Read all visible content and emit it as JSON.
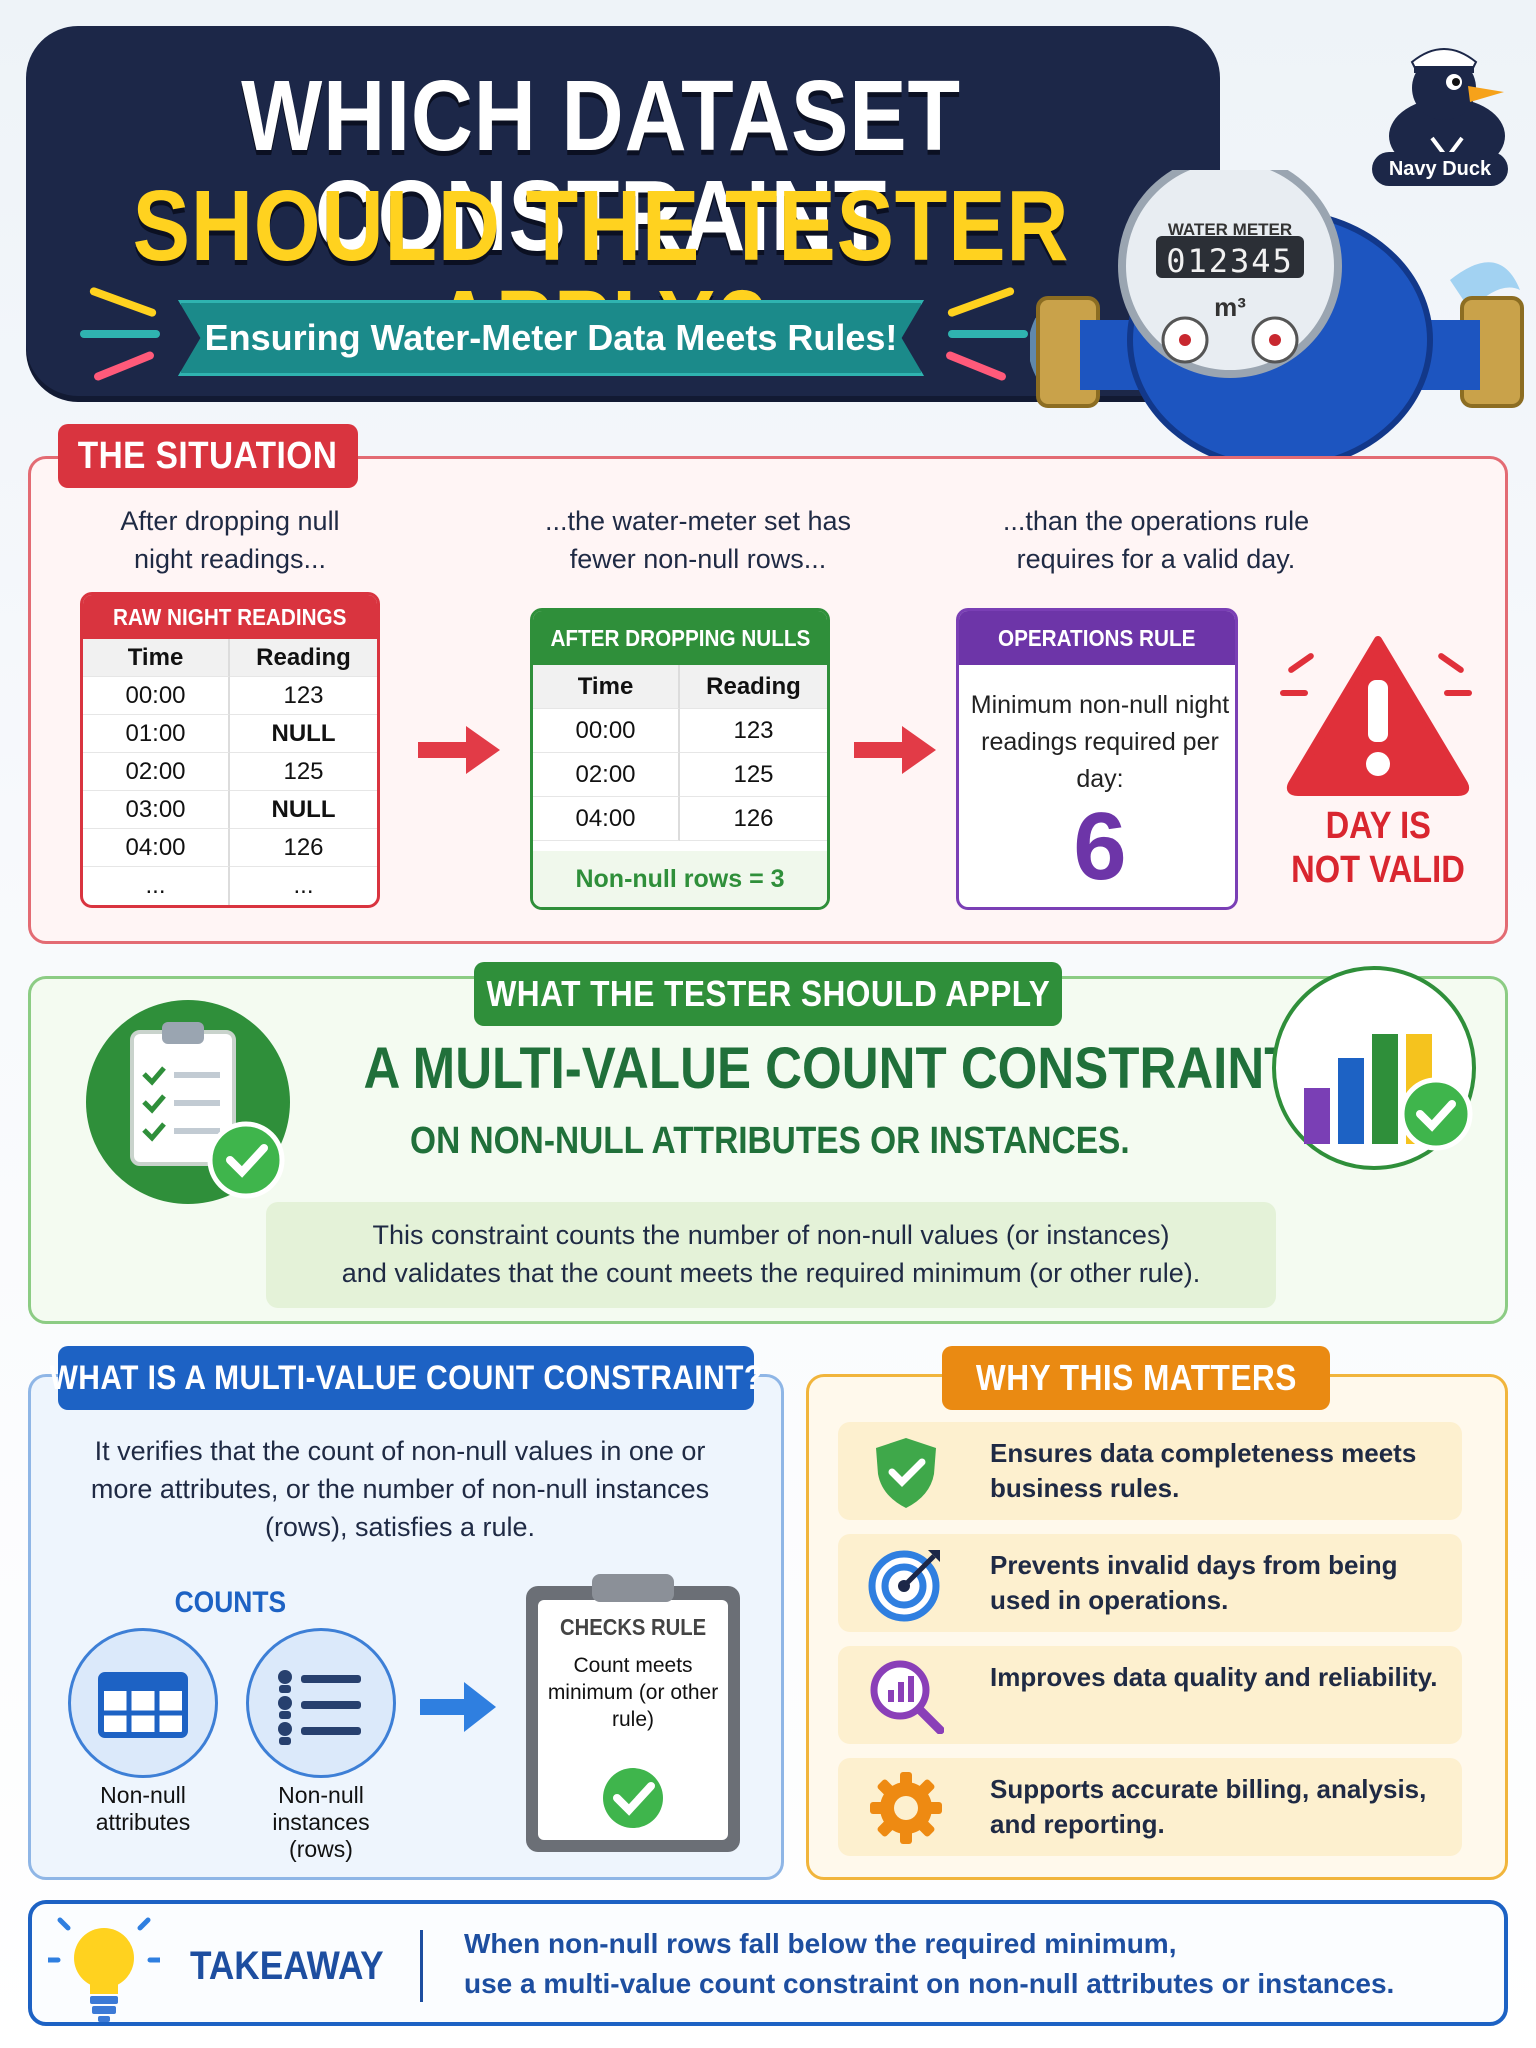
{
  "header": {
    "title_line1": "WHICH DATASET CONSTRAINT",
    "title_line2": "SHOULD THE TESTER APPLY?",
    "subtitle": "Ensuring Water-Meter Data Meets Rules!",
    "brand": "Navy Duck"
  },
  "meter": {
    "label": "WATER METER",
    "reading": "012345",
    "unit": "m³"
  },
  "situation": {
    "tag": "THE SITUATION",
    "captions": [
      "After dropping null night readings...",
      "...the water-meter set has fewer non-null rows...",
      "...than the operations rule requires for a valid day."
    ],
    "raw_table": {
      "title": "RAW NIGHT READINGS",
      "headers": [
        "Time",
        "Reading"
      ],
      "rows": [
        [
          "00:00",
          "123"
        ],
        [
          "01:00",
          "NULL"
        ],
        [
          "02:00",
          "125"
        ],
        [
          "03:00",
          "NULL"
        ],
        [
          "04:00",
          "126"
        ],
        [
          "...",
          "..."
        ]
      ]
    },
    "dropped_table": {
      "title": "AFTER DROPPING NULLS",
      "headers": [
        "Time",
        "Reading"
      ],
      "rows": [
        [
          "00:00",
          "123"
        ],
        [
          "02:00",
          "125"
        ],
        [
          "04:00",
          "126"
        ]
      ],
      "footer": "Non-null rows = 3"
    },
    "rule": {
      "title": "OPERATIONS RULE",
      "text": "Minimum non-null night readings required per day:",
      "number": "6"
    },
    "verdict_line1": "DAY IS",
    "verdict_line2": "NOT VALID"
  },
  "apply": {
    "tag": "WHAT THE TESTER SHOULD APPLY",
    "headline": "A MULTI-VALUE COUNT CONSTRAINT",
    "subheadline": "ON NON-NULL ATTRIBUTES OR INSTANCES.",
    "description_line1": "This constraint counts the number of non-null values (or instances)",
    "description_line2": "and validates that the count meets the required minimum (or other rule)."
  },
  "whatis": {
    "tag": "WHAT IS A MULTI-VALUE COUNT CONSTRAINT?",
    "text": "It verifies that the count of non-null values in one or more attributes, or the number of non-null instances (rows), satisfies a rule.",
    "counts_label": "COUNTS",
    "icon1_label": "Non-null attributes",
    "icon2_label": "Non-null instances (rows)",
    "checks_title": "CHECKS RULE",
    "checks_text": "Count meets minimum (or other rule)"
  },
  "why": {
    "tag": "WHY THIS MATTERS",
    "items": [
      {
        "icon": "shield-check-icon",
        "text": "Ensures data completeness meets business rules."
      },
      {
        "icon": "target-icon",
        "text": "Prevents invalid days from being used in operations."
      },
      {
        "icon": "chart-magnifier-icon",
        "text": "Improves data quality and reliability."
      },
      {
        "icon": "gear-icon",
        "text": "Supports accurate billing, analysis, and reporting."
      }
    ]
  },
  "takeaway": {
    "label": "TAKEAWAY",
    "line1": "When non-null rows fall below the required minimum,",
    "line2": "use a multi-value count constraint on non-null attributes or instances."
  },
  "colors": {
    "navy": "#1c2748",
    "yellow": "#ffd21f",
    "red": "#d9343f",
    "green": "#2f8f3a",
    "purple": "#6d35a8",
    "blue": "#1d62c4",
    "orange": "#ea8a12"
  }
}
